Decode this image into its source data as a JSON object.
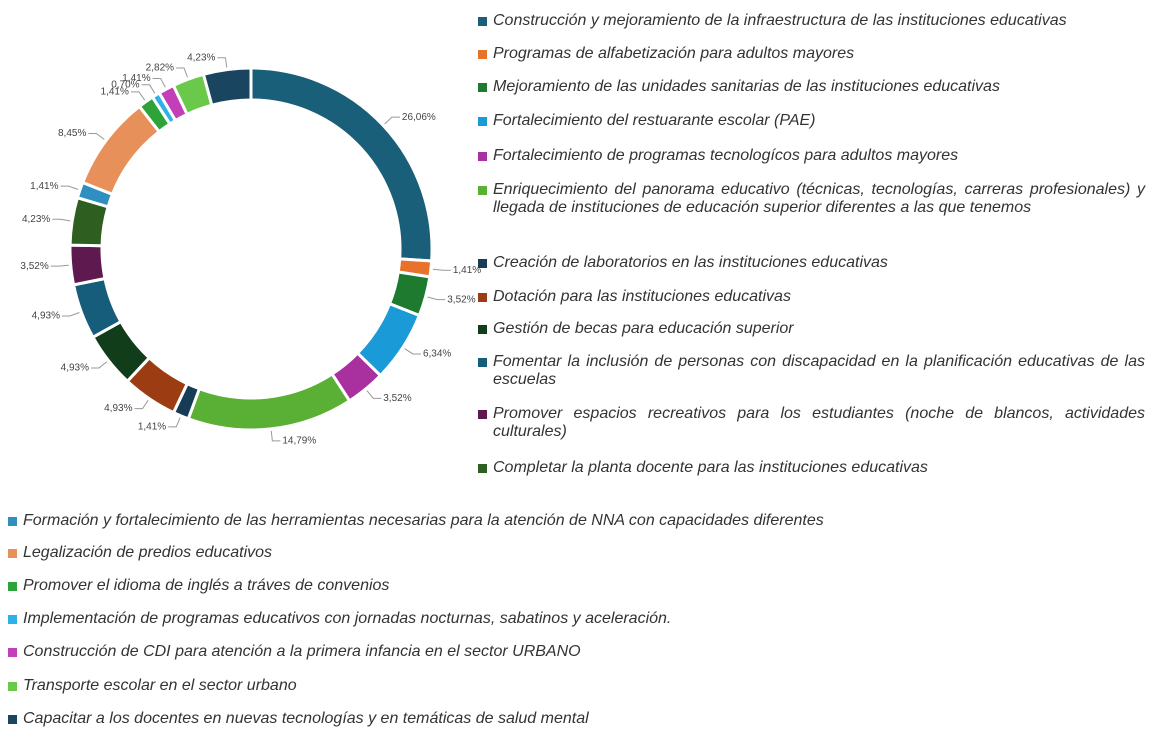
{
  "chart_data": {
    "type": "donut",
    "categories": [
      "Construcción y mejoramiento de la infraestructura de las instituciones educativas",
      "Programas de alfabetización para adultos mayores",
      "Mejoramiento de las unidades sanitarias de las instituciones educativas",
      "Fortalecimiento del restuarante escolar (PAE)",
      "Fortalecimiento de programas tecnologícos para adultos mayores",
      "Enriquecimiento del panorama educativo (técnicas, tecnologías, carreras profesionales) y llegada de instituciones de educación superior diferentes a las que tenemos",
      "Creación de laboratorios en las instituciones educativas",
      "Dotación para las instituciones educativas",
      "Gestión de becas para educación superior",
      "Fomentar la inclusión de personas con discapacidad en la planificación educativas de las escuelas",
      "Promover espacios recreativos para los estudiantes (noche de blancos, actividades culturales)",
      "Completar la planta docente para las instituciones educativas",
      "Formación y fortalecimiento de las herramientas necesarias para la atención de NNA con capacidades diferentes",
      "Legalización de predios educativos",
      "Promover el idioma de inglés a tráves de convenios",
      "Implementación de programas educativos con jornadas nocturnas, sabatinos y aceleración.",
      "Construcción de CDI para atención a la primera infancia en el sector URBANO",
      "Transporte escolar en el sector urbano",
      "Capacitar a los docentes en nuevas tecnologías y en temáticas de salud mental"
    ],
    "values": [
      26.06,
      1.41,
      3.52,
      6.34,
      3.52,
      14.79,
      1.41,
      4.93,
      4.93,
      4.93,
      3.52,
      4.23,
      1.41,
      8.45,
      1.41,
      0.7,
      1.41,
      2.82,
      4.23
    ],
    "value_labels": [
      "26,06%",
      "1,41%",
      "3,52%",
      "6,34%",
      "3,52%",
      "14,79%",
      "1,41%",
      "4,93%",
      "4,93%",
      "4,93%",
      "3,52%",
      "4,23%",
      "1,41%",
      "8,45%",
      "1,41%",
      "0,70%",
      "1,41%",
      "2,82%",
      "4,23%"
    ],
    "colors": [
      "#1a5f7a",
      "#e8712b",
      "#1e7a2e",
      "#1a9ad6",
      "#a8309f",
      "#5ab034",
      "#163c56",
      "#9c3c12",
      "#123d1a",
      "#155d7a",
      "#5e1a4f",
      "#2e5f20",
      "#2e8fc0",
      "#e8905a",
      "#2ea33a",
      "#2eb0e8",
      "#c23fb8",
      "#6ac94a",
      "#1a4560"
    ]
  }
}
